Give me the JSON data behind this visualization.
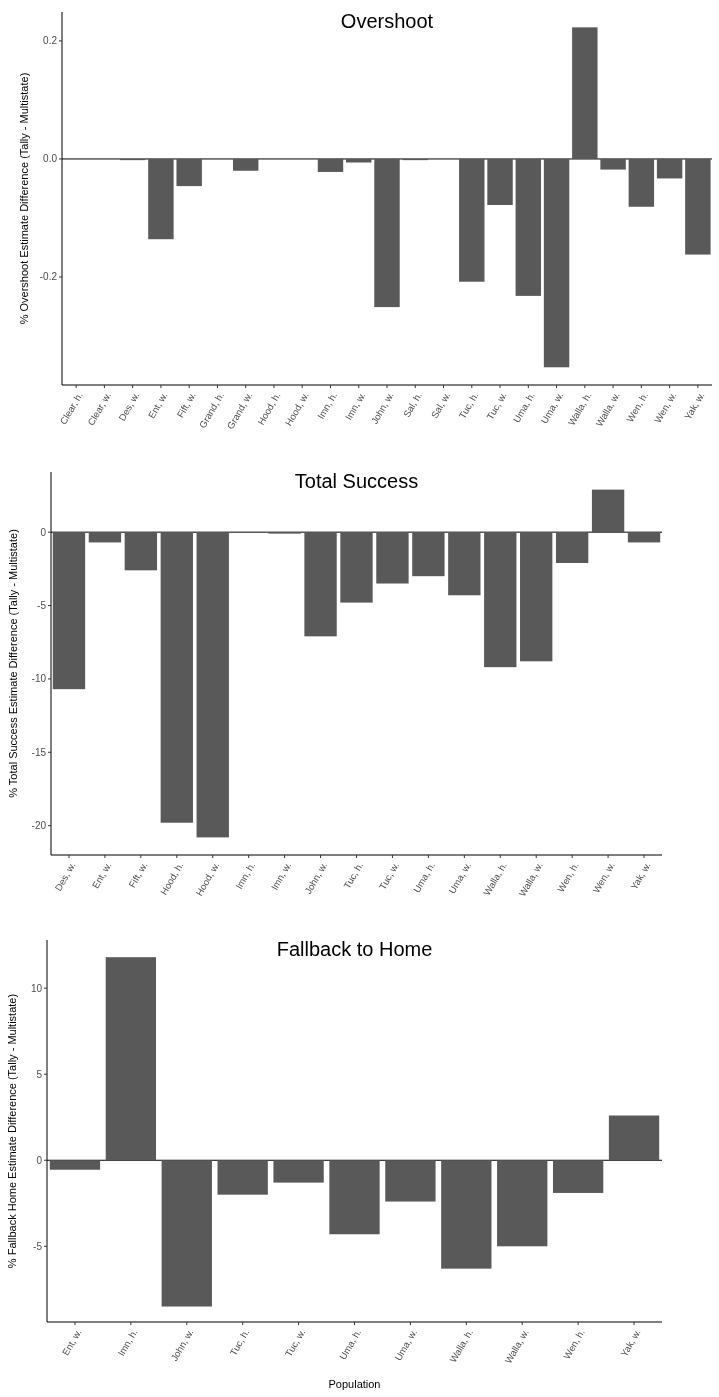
{
  "chart_data": [
    {
      "type": "bar",
      "title": "Overshoot",
      "ylabel": "% Overshoot Estimate Difference (Tally - Multistate)",
      "categories": [
        "Clear, h.",
        "Clear, w.",
        "Des, w.",
        "Ent, w.",
        "Fift, w.",
        "Grand, h.",
        "Grand, w.",
        "Hood, h.",
        "Hood, w.",
        "Imn, h.",
        "Imn, w.",
        "John, w.",
        "Sal, h.",
        "Sal, w.",
        "Tuc, h.",
        "Tuc, w.",
        "Uma, h.",
        "Uma, w.",
        "Walla, h.",
        "Walla, w.",
        "Wen, h.",
        "Wen, w.",
        "Yak, w."
      ],
      "values": [
        0,
        0,
        -0.002,
        -0.136,
        -0.046,
        0,
        -0.02,
        0,
        0,
        -0.022,
        -0.006,
        -0.251,
        -0.002,
        0,
        -0.208,
        -0.078,
        -0.232,
        -0.353,
        0.223,
        -0.018,
        -0.081,
        -0.033,
        -0.162
      ],
      "color": "#595959",
      "ylim": [
        -0.383,
        0.249
      ],
      "yticks": [
        {
          "value": -0.2,
          "label": "-0.2"
        },
        {
          "value": 0,
          "label": "0.0"
        },
        {
          "value": 0.2,
          "label": "0.2"
        }
      ],
      "ref_lines": [
        {
          "axis": "y",
          "value": 0,
          "color": "#000000"
        }
      ],
      "grid": false
    },
    {
      "type": "bar",
      "title": "Total Success",
      "ylabel": "% Total Success Estimate Difference (Tally - Multistate)",
      "categories": [
        "Des, w.",
        "Ent, w.",
        "Fift, w.",
        "Hood, h.",
        "Hood, w.",
        "Imn, h.",
        "Imn, w.",
        "John, w.",
        "Tuc, h.",
        "Tuc, w.",
        "Uma, h.",
        "Uma, w.",
        "Walla, h.",
        "Walla, w.",
        "Wen, h.",
        "Wen, w.",
        "Yak, w."
      ],
      "values": [
        -10.7,
        -0.7,
        -2.6,
        -19.8,
        -20.8,
        0,
        -0.1,
        -7.1,
        -4.8,
        -3.5,
        -3,
        -4.3,
        -9.2,
        -8.8,
        -2.1,
        2.9,
        -0.7
      ],
      "color": "#595959",
      "ylim": [
        -22,
        4.1
      ],
      "yticks": [
        -20,
        -15,
        -10,
        -5,
        0
      ],
      "ref_lines": [
        {
          "axis": "y",
          "value": 0,
          "color": "#000000"
        }
      ],
      "grid": false
    },
    {
      "type": "bar",
      "title": "Fallback to Home",
      "xlabel": "Population",
      "ylabel": "% Fallback Home Estimate Difference (Tally - Multistate)",
      "categories": [
        "Ent, w.",
        "Imn, h.",
        "John, w.",
        "Tuc, h.",
        "Tuc, w.",
        "Uma, h.",
        "Uma, w.",
        "Walla, h.",
        "Walla, w.",
        "Wen, h.",
        "Yak, w."
      ],
      "values": [
        -0.55,
        11.8,
        -8.5,
        -2,
        -1.3,
        -4.3,
        -2.4,
        -6.3,
        -5,
        -1.9,
        2.6
      ],
      "color": "#595959",
      "ylim": [
        -9.4,
        12.8
      ],
      "yticks": [
        -5,
        0,
        5,
        10
      ],
      "ref_lines": [
        {
          "axis": "y",
          "value": 0,
          "color": "#000000"
        }
      ],
      "grid": false
    }
  ]
}
